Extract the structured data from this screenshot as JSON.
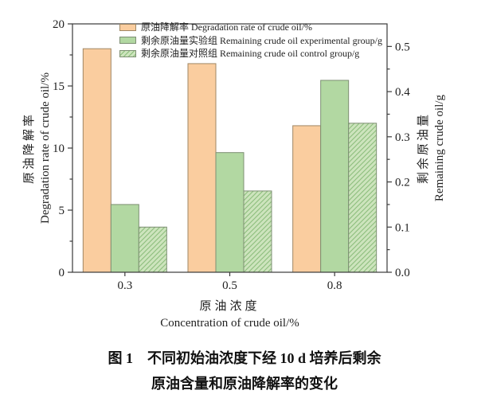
{
  "figure": {
    "caption_line1": "图 1　不同初始油浓度下经 10 d 培养后剩余",
    "caption_line2": "原油含量和原油降解率的变化"
  },
  "axes": {
    "left": {
      "title_zh": "原油降解率",
      "title_en": "Degradation rate of crude oil/%",
      "tick_values": [
        0,
        5,
        10,
        15,
        20
      ],
      "tick_labels": [
        "0",
        "5",
        "10",
        "15",
        "20"
      ],
      "minor_ticks": [
        2.5,
        7.5,
        12.5,
        17.5
      ]
    },
    "right": {
      "title_zh": "剩余原油量",
      "title_en": "Remaining crude oil/g",
      "tick_values": [
        0,
        0.1,
        0.2,
        0.3,
        0.4,
        0.5
      ],
      "tick_labels": [
        "0.0",
        "0.1",
        "0.2",
        "0.3",
        "0.4",
        "0.5"
      ],
      "minor_ticks": [
        0.05,
        0.15,
        0.25,
        0.35,
        0.45
      ]
    },
    "x": {
      "title_zh": "原油浓度",
      "title_en": "Concentration of crude oil/%",
      "categories": [
        "0.3",
        "0.5",
        "0.8"
      ]
    }
  },
  "legend": [
    {
      "label": "原油降解率 Degradation rate of crude oil/%"
    },
    {
      "label": "剩余原油量实验组 Remaining crude oil experimental group/g"
    },
    {
      "label": "剩余原油量对照组 Remaining crude oil control group/g"
    }
  ],
  "colors": {
    "axis": "#3a3a3a",
    "text": "#1f1f1f",
    "orange_fill": "#facd9f",
    "orange_edge": "#a08764",
    "green_fill": "#b2d8a2",
    "green_edge": "#7d8f73",
    "hatch_fill": "#cde4bd",
    "hatch_line": "#8cbe7c"
  },
  "chart_data": {
    "type": "bar",
    "categories": [
      "0.3",
      "0.5",
      "0.8"
    ],
    "series": [
      {
        "name": "原油降解率 Degradation rate of crude oil/%",
        "axis": "left",
        "values": [
          18.0,
          16.8,
          11.8
        ],
        "color": "#facd9f",
        "edge": "#a08764",
        "hatch": null
      },
      {
        "name": "剩余原油量实验组 Remaining crude oil experimental group/g",
        "axis": "right",
        "values": [
          0.15,
          0.265,
          0.425
        ],
        "color": "#b2d8a2",
        "edge": "#7d8f73",
        "hatch": null
      },
      {
        "name": "剩余原油量对照组 Remaining crude oil control group/g",
        "axis": "right",
        "values": [
          0.1,
          0.18,
          0.33
        ],
        "color": "#cde4bd",
        "edge": "#7d8f73",
        "hatch": "diagonal",
        "hatch_color": "#8cbe7c"
      }
    ],
    "title": "图 1 不同初始油浓度下经 10 d 培养后剩余原油含量和原油降解率的变化",
    "xlabel": "原油浓度 Concentration of crude oil/%",
    "ylabel_left": "原油降解率 Degradation rate of crude oil/%",
    "ylabel_right": "剩余原油量 Remaining crude oil/g",
    "ylim_left": [
      0,
      20
    ],
    "ylim_right": [
      0,
      0.55
    ],
    "grid": false,
    "legend_position": "upper-center-inside"
  }
}
